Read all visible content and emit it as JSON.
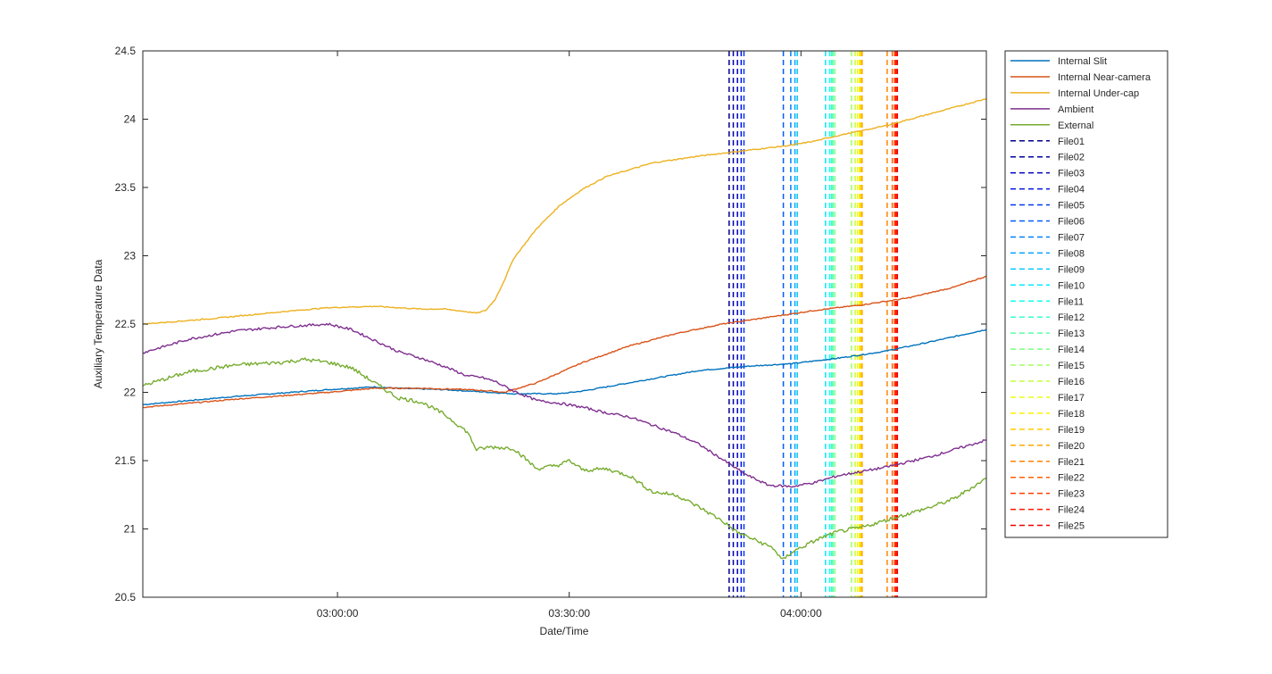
{
  "chart_data": {
    "type": "line",
    "title": "",
    "xlabel": "Date/Time",
    "ylabel": "Auxiliary Temperature Data",
    "xlim_minutes": [
      0,
      182
    ],
    "ylim": [
      20.5,
      24.5
    ],
    "y_ticks": [
      20.5,
      21,
      21.5,
      22,
      22.5,
      23,
      23.5,
      24,
      24.5
    ],
    "y_tick_labels": [
      "20.5",
      "21",
      "21.5",
      "22",
      "22.5",
      "23",
      "23.5",
      "24",
      "24.5"
    ],
    "x_ticks": [
      {
        "minute": 42,
        "label": "03:00:00"
      },
      {
        "minute": 92,
        "label": "03:30:00"
      },
      {
        "minute": 142,
        "label": "04:00:00"
      }
    ],
    "x_minute_note": "x values are minutes since the left edge of the axes (about 02:18)",
    "grid": false,
    "legend_position": "outside-right",
    "series": [
      {
        "name": "Internal Slit",
        "color": "#0072BD",
        "x": [
          0,
          20,
          40,
          50,
          55,
          65,
          75,
          80,
          85,
          90,
          95,
          100,
          110,
          120,
          130,
          140,
          150,
          160,
          170,
          182
        ],
        "y": [
          21.91,
          21.97,
          22.02,
          22.04,
          22.03,
          22.02,
          22.0,
          21.99,
          21.99,
          21.99,
          22.01,
          22.04,
          22.1,
          22.16,
          22.19,
          22.21,
          22.25,
          22.3,
          22.37,
          22.46
        ]
      },
      {
        "name": "Internal Near-camera",
        "color": "#D95319",
        "x": [
          0,
          20,
          40,
          50,
          60,
          70,
          75,
          78,
          85,
          95,
          105,
          115,
          125,
          135,
          145,
          155,
          165,
          175,
          182
        ],
        "y": [
          21.89,
          21.95,
          22.0,
          22.03,
          22.03,
          22.02,
          22.01,
          22.0,
          22.07,
          22.22,
          22.34,
          22.43,
          22.5,
          22.55,
          22.6,
          22.64,
          22.69,
          22.77,
          22.85
        ]
      },
      {
        "name": "Internal Under-cap",
        "color": "#EDB120",
        "x": [
          0,
          15,
          30,
          40,
          50,
          55,
          60,
          65,
          70,
          72,
          74,
          76,
          78,
          80,
          85,
          90,
          95,
          100,
          110,
          120,
          130,
          135,
          140,
          145,
          150,
          160,
          170,
          182
        ],
        "y": [
          22.5,
          22.54,
          22.59,
          22.62,
          22.63,
          22.62,
          22.61,
          22.61,
          22.59,
          22.58,
          22.6,
          22.68,
          22.82,
          22.98,
          23.2,
          23.37,
          23.49,
          23.58,
          23.68,
          23.73,
          23.77,
          23.79,
          23.81,
          23.84,
          23.88,
          23.95,
          24.04,
          24.15
        ]
      },
      {
        "name": "Ambient",
        "color": "#7E2F8E",
        "x": [
          0,
          10,
          20,
          30,
          40,
          45,
          50,
          55,
          60,
          65,
          70,
          73,
          76,
          80,
          85,
          90,
          95,
          100,
          105,
          110,
          115,
          120,
          125,
          130,
          135,
          140,
          145,
          150,
          160,
          170,
          182
        ],
        "y": [
          22.29,
          22.39,
          22.45,
          22.48,
          22.5,
          22.46,
          22.38,
          22.3,
          22.25,
          22.19,
          22.12,
          22.11,
          22.08,
          22.01,
          21.94,
          21.92,
          21.89,
          21.85,
          21.82,
          21.76,
          21.7,
          21.62,
          21.51,
          21.4,
          21.32,
          21.31,
          21.34,
          21.39,
          21.45,
          21.53,
          21.65
        ]
      },
      {
        "name": "External",
        "color": "#77AC30",
        "x": [
          0,
          10,
          20,
          30,
          35,
          40,
          45,
          50,
          55,
          60,
          65,
          70,
          72,
          75,
          80,
          85,
          90,
          92,
          95,
          100,
          105,
          110,
          115,
          120,
          125,
          128,
          132,
          136,
          138,
          140,
          143,
          146,
          150,
          155,
          160,
          165,
          170,
          175,
          182
        ],
        "y": [
          22.05,
          22.15,
          22.2,
          22.22,
          22.24,
          22.22,
          22.18,
          22.07,
          21.96,
          21.93,
          21.84,
          21.71,
          21.58,
          21.6,
          21.59,
          21.44,
          21.47,
          21.5,
          21.43,
          21.44,
          21.39,
          21.27,
          21.25,
          21.16,
          21.06,
          20.98,
          20.92,
          20.86,
          20.77,
          20.83,
          20.88,
          20.93,
          20.98,
          21.01,
          21.06,
          21.11,
          21.16,
          21.22,
          21.37
        ]
      }
    ],
    "file_markers": [
      {
        "name": "File01",
        "x": 126.5,
        "color": "#00008F"
      },
      {
        "name": "File02",
        "x": 127.4,
        "color": "#0000A5"
      },
      {
        "name": "File03",
        "x": 128.3,
        "color": "#0000C4"
      },
      {
        "name": "File04",
        "x": 129.1,
        "color": "#0014E0"
      },
      {
        "name": "File05",
        "x": 129.7,
        "color": "#0038F5"
      },
      {
        "name": "File06",
        "x": 138.2,
        "color": "#005CFF"
      },
      {
        "name": "File07",
        "x": 139.8,
        "color": "#0080FF"
      },
      {
        "name": "File08",
        "x": 140.7,
        "color": "#00A4FF"
      },
      {
        "name": "File09",
        "x": 141.2,
        "color": "#00C8FF"
      },
      {
        "name": "File10",
        "x": 147.3,
        "color": "#00ECFF"
      },
      {
        "name": "File11",
        "x": 148.2,
        "color": "#10FFEF"
      },
      {
        "name": "File12",
        "x": 148.6,
        "color": "#34FFCB"
      },
      {
        "name": "File13",
        "x": 148.9,
        "color": "#58FFA7"
      },
      {
        "name": "File14",
        "x": 149.3,
        "color": "#7CFF83"
      },
      {
        "name": "File15",
        "x": 152.9,
        "color": "#A0FF5F"
      },
      {
        "name": "File16",
        "x": 153.7,
        "color": "#C4FF3B"
      },
      {
        "name": "File17",
        "x": 154.2,
        "color": "#E8FF17"
      },
      {
        "name": "File18",
        "x": 154.6,
        "color": "#FFF000"
      },
      {
        "name": "File19",
        "x": 154.9,
        "color": "#FFCC00"
      },
      {
        "name": "File20",
        "x": 155.2,
        "color": "#FFA800"
      },
      {
        "name": "File21",
        "x": 160.6,
        "color": "#FF8400"
      },
      {
        "name": "File22",
        "x": 161.7,
        "color": "#FF6000"
      },
      {
        "name": "File23",
        "x": 162.2,
        "color": "#FF3C00"
      },
      {
        "name": "File24",
        "x": 162.5,
        "color": "#FF1800"
      },
      {
        "name": "File25",
        "x": 162.8,
        "color": "#F00000"
      }
    ]
  }
}
